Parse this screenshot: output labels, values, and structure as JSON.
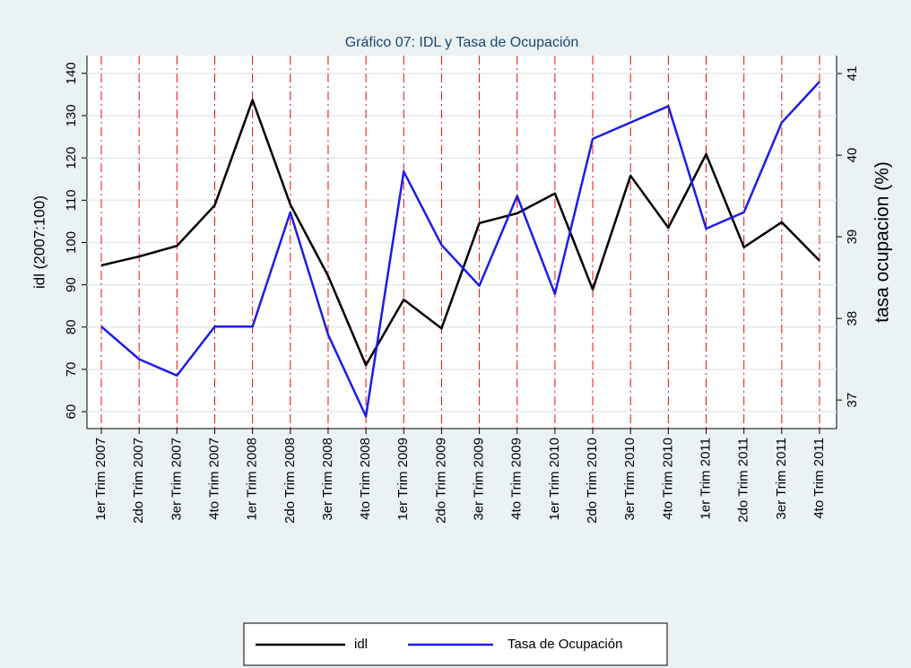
{
  "chart_data": {
    "type": "line",
    "title": "Gráfico 07: IDL y Tasa de Ocupación",
    "y_label": "idl (2007:100)",
    "y2_label": "tasa ocupacion (%)",
    "categories": [
      "1er Trim 2007",
      "2do Trim 2007",
      "3er Trim 2007",
      "4to Trim 2007",
      "1er Trim 2008",
      "2do Trim 2008",
      "3er Trim 2008",
      "4to Trim 2008",
      "1er Trim 2009",
      "2do Trim 2009",
      "3er Trim 2009",
      "4to Trim 2009",
      "1er Trim 2010",
      "2do Trim 2010",
      "3er Trim 2010",
      "4to Trim 2010",
      "1er Trim 2011",
      "2do Trim 2011",
      "3er Trim 2011",
      "4to Trim 2011"
    ],
    "series": [
      {
        "name": "idl",
        "color": "#000000",
        "axis": "y",
        "values": [
          94.6,
          96.7,
          99.2,
          108.8,
          133.7,
          109.0,
          92.1,
          71.0,
          86.5,
          79.7,
          104.6,
          106.9,
          111.6,
          88.9,
          115.8,
          103.5,
          120.9,
          98.9,
          104.8,
          95.7
        ]
      },
      {
        "name": "Tasa de Ocupación",
        "color": "#1c1ce8",
        "axis": "y2",
        "values": [
          37.9,
          37.5,
          37.3,
          37.9,
          37.9,
          39.3,
          37.8,
          36.8,
          39.8,
          38.9,
          38.4,
          39.5,
          38.3,
          40.2,
          40.4,
          40.6,
          39.1,
          39.3,
          40.4,
          40.9
        ]
      }
    ],
    "ylim": [
      56,
      144.2
    ],
    "yticks": [
      60,
      70,
      80,
      90,
      100,
      110,
      120,
      130,
      140
    ],
    "y2lim": [
      36.65,
      41.22
    ],
    "y2ticks": [
      37,
      38,
      39,
      40,
      41
    ],
    "grid": true,
    "xlines": true,
    "xline_color": "#e01010",
    "legend": "bottom"
  }
}
